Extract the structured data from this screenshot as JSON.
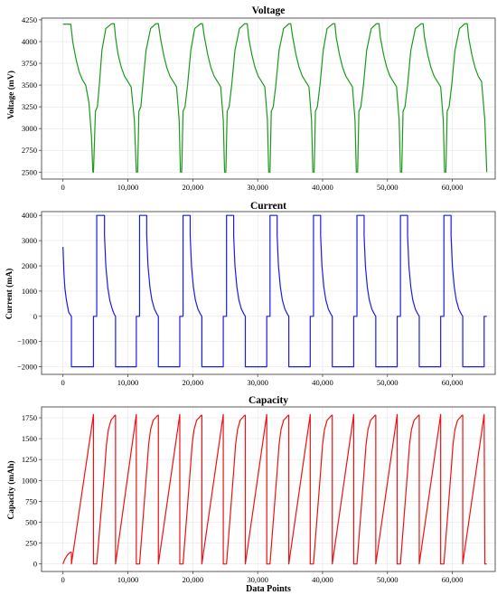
{
  "chart_data": [
    {
      "type": "line",
      "title": "Voltage",
      "xlabel": "",
      "ylabel": "Voltage (mV)",
      "xlim": [
        -3300,
        66600
      ],
      "ylim": [
        2420,
        4270
      ],
      "xticks": [
        0,
        10000,
        20000,
        30000,
        40000,
        50000,
        60000
      ],
      "xtick_labels": [
        "0",
        "10,000",
        "20,000",
        "30,000",
        "40,000",
        "50,000",
        "60,000"
      ],
      "yticks": [
        2500,
        2750,
        3000,
        3250,
        3500,
        3750,
        4000,
        4250
      ],
      "ytick_labels": [
        "2500",
        "2750",
        "3000",
        "3250",
        "3500",
        "3750",
        "4000",
        "4250"
      ],
      "grid": true,
      "color": "#1a9a1a",
      "series": [
        {
          "x": [
            0,
            1200,
            1500,
            2000,
            2500,
            3000,
            3500,
            4000,
            4400,
            4600,
            4700,
            5000,
            5300,
            5600,
            6000,
            6600,
            7500,
            7900,
            8100,
            8500,
            9000,
            9500,
            10000,
            10500,
            11000,
            11300,
            11500,
            11700,
            12000,
            12300,
            12800,
            13500,
            14300,
            14700,
            15000,
            15500,
            16000,
            16500,
            17000,
            17500,
            17900,
            18100,
            18300,
            18500,
            18800,
            19200,
            19700,
            20300,
            21200,
            21500,
            21800,
            22300,
            22800,
            23300,
            23800,
            24300,
            24700,
            24900,
            25100,
            25300,
            25600,
            26000,
            26500,
            27200,
            28000,
            28400,
            28600,
            29100,
            29600,
            30100,
            30600,
            31100,
            31500,
            31700,
            31900,
            32100,
            32400,
            32800,
            33300,
            34000,
            34800,
            35100,
            35400,
            35900,
            36400,
            36900,
            37400,
            37900,
            38300,
            38500,
            38700,
            38900,
            39200,
            39600,
            40100,
            40700,
            41600,
            41900,
            42100,
            42600,
            43100,
            43600,
            44100,
            44600,
            45000,
            45200,
            45400,
            45600,
            45900,
            46300,
            46800,
            47500,
            48300,
            48700,
            48900,
            49400,
            49900,
            50400,
            50900,
            51400,
            51800,
            52000,
            52200,
            52400,
            52700,
            53100,
            53600,
            54300,
            55200,
            55500,
            55700,
            56200,
            56700,
            57200,
            57700,
            58200,
            58600,
            58800,
            59000,
            59200,
            59500,
            59900,
            60400,
            61100,
            61900,
            62300,
            62500,
            63000,
            63500,
            64000,
            64500,
            65000,
            65300
          ],
          "y": [
            4200,
            4200,
            4000,
            3800,
            3650,
            3560,
            3500,
            3300,
            2900,
            2500,
            2500,
            3200,
            3250,
            3500,
            3900,
            4150,
            4205,
            4205,
            4050,
            3850,
            3700,
            3600,
            3540,
            3480,
            3100,
            2500,
            2500,
            3200,
            3250,
            3500,
            3900,
            4150,
            4205,
            4205,
            4050,
            3850,
            3700,
            3600,
            3540,
            3480,
            3100,
            2500,
            2500,
            3200,
            3250,
            3500,
            3900,
            4150,
            4205,
            4205,
            4050,
            3850,
            3700,
            3600,
            3540,
            3480,
            3100,
            2500,
            2500,
            3200,
            3250,
            3500,
            3900,
            4150,
            4205,
            4205,
            4050,
            3850,
            3700,
            3600,
            3540,
            3480,
            3100,
            2500,
            2500,
            3200,
            3250,
            3500,
            3900,
            4150,
            4205,
            4205,
            4050,
            3850,
            3700,
            3600,
            3540,
            3480,
            3100,
            2500,
            2500,
            3200,
            3250,
            3500,
            3900,
            4150,
            4205,
            4205,
            4050,
            3850,
            3700,
            3600,
            3540,
            3480,
            3100,
            2500,
            2500,
            3200,
            3250,
            3500,
            3900,
            4150,
            4205,
            4205,
            4050,
            3850,
            3700,
            3600,
            3540,
            3480,
            3100,
            2500,
            2500,
            3200,
            3250,
            3500,
            3900,
            4150,
            4205,
            4205,
            4050,
            3850,
            3700,
            3600,
            3540,
            3480,
            3100,
            2500,
            2500,
            3200,
            3250,
            3500,
            3900,
            4150,
            4205,
            4205,
            4050,
            3850,
            3700,
            3600,
            3540,
            3100,
            2500
          ]
        }
      ]
    },
    {
      "type": "line",
      "title": "Current",
      "xlabel": "",
      "ylabel": "Current (mA)",
      "xlim": [
        -3300,
        66600
      ],
      "ylim": [
        -2300,
        4150
      ],
      "xticks": [
        0,
        10000,
        20000,
        30000,
        40000,
        50000,
        60000
      ],
      "xtick_labels": [
        "0",
        "10,000",
        "20,000",
        "30,000",
        "40,000",
        "50,000",
        "60,000"
      ],
      "yticks": [
        -2000,
        -1000,
        0,
        1000,
        2000,
        3000,
        4000
      ],
      "ytick_labels": [
        "−2000",
        "−1000",
        "0",
        "1000",
        "2000",
        "3000",
        "4000"
      ],
      "grid": true,
      "color": "#1a1aee",
      "series": [
        {
          "x": [
            0,
            150,
            300,
            500,
            700,
            900,
            1200,
            1300,
            1300,
            4700,
            4700,
            5000,
            5200,
            5200,
            6400,
            6400,
            6600,
            6900,
            7200,
            7600,
            7900,
            8100,
            8100,
            11300,
            11300,
            11600,
            11800,
            11800,
            12900,
            12900,
            13100,
            13400,
            13700,
            14100,
            14500,
            14700,
            14700,
            18000,
            18000,
            18300,
            18500,
            18500,
            19600,
            19600,
            19800,
            20100,
            20400,
            20800,
            21200,
            21400,
            21400,
            24700,
            24700,
            25000,
            25200,
            25200,
            26300,
            26300,
            26500,
            26800,
            27100,
            27500,
            27900,
            28100,
            28100,
            31400,
            31400,
            31700,
            31900,
            31900,
            33000,
            33000,
            33200,
            33500,
            33800,
            34200,
            34600,
            34800,
            34800,
            38100,
            38100,
            38400,
            38600,
            38600,
            39700,
            39700,
            39900,
            40200,
            40500,
            40900,
            41300,
            41500,
            41500,
            44800,
            44800,
            45100,
            45300,
            45300,
            46400,
            46400,
            46600,
            46900,
            47200,
            47600,
            48000,
            48200,
            48200,
            51500,
            51500,
            51800,
            52000,
            52000,
            53100,
            53100,
            53300,
            53600,
            53900,
            54300,
            54700,
            54900,
            54900,
            58200,
            58200,
            58500,
            58700,
            58700,
            59800,
            59800,
            60000,
            60300,
            60600,
            61000,
            61400,
            61600,
            61600,
            64900,
            64900,
            65300
          ],
          "y": [
            2750,
            1700,
            1100,
            700,
            400,
            150,
            40,
            0,
            -2000,
            -2000,
            0,
            0,
            0,
            4000,
            4000,
            3200,
            2000,
            1150,
            650,
            280,
            80,
            0,
            -2000,
            -2000,
            0,
            0,
            0,
            4000,
            4000,
            3200,
            2000,
            1150,
            650,
            280,
            80,
            0,
            -2000,
            -2000,
            0,
            0,
            0,
            4000,
            4000,
            3200,
            2000,
            1150,
            650,
            280,
            80,
            0,
            -2000,
            -2000,
            0,
            0,
            0,
            4000,
            4000,
            3200,
            2000,
            1150,
            650,
            280,
            80,
            0,
            -2000,
            -2000,
            0,
            0,
            0,
            4000,
            4000,
            3200,
            2000,
            1150,
            650,
            280,
            80,
            0,
            -2000,
            -2000,
            0,
            0,
            0,
            4000,
            4000,
            3200,
            2000,
            1150,
            650,
            280,
            80,
            0,
            -2000,
            -2000,
            0,
            0,
            0,
            4000,
            4000,
            3200,
            2000,
            1150,
            650,
            280,
            80,
            0,
            -2000,
            -2000,
            0,
            0,
            0,
            4000,
            4000,
            3200,
            2000,
            1150,
            650,
            280,
            80,
            0,
            -2000,
            -2000,
            0,
            0,
            0,
            4000,
            4000,
            3200,
            2000,
            1150,
            650,
            280,
            80,
            0,
            -2000,
            -2000,
            0,
            0
          ]
        }
      ]
    },
    {
      "type": "line",
      "title": "Capacity",
      "xlabel": "Data Points",
      "ylabel": "Capacity (mAh)",
      "xlim": [
        -3300,
        66600
      ],
      "ylim": [
        -90,
        1880
      ],
      "xticks": [
        0,
        10000,
        20000,
        30000,
        40000,
        50000,
        60000
      ],
      "xtick_labels": [
        "0",
        "10,000",
        "20,000",
        "30,000",
        "40,000",
        "50,000",
        "60,000"
      ],
      "yticks": [
        0,
        250,
        500,
        750,
        1000,
        1250,
        1500,
        1750
      ],
      "ytick_labels": [
        "0",
        "250",
        "500",
        "750",
        "1000",
        "1250",
        "1500",
        "1750"
      ],
      "grid": true,
      "color": "#ee1111",
      "series": [
        {
          "x": [
            0,
            300,
            700,
            1100,
            1300,
            1300,
            4700,
            4700,
            5200,
            6400,
            6700,
            7000,
            7400,
            8000,
            8100,
            8100,
            11300,
            11300,
            11800,
            12900,
            13200,
            13500,
            13900,
            14600,
            14700,
            14700,
            18000,
            18000,
            18500,
            19600,
            19900,
            20200,
            20600,
            21300,
            21400,
            21400,
            24700,
            24700,
            25200,
            26300,
            26600,
            26900,
            27300,
            28000,
            28100,
            28100,
            31400,
            31400,
            31900,
            33000,
            33300,
            33600,
            34000,
            34700,
            34800,
            34800,
            38100,
            38100,
            38600,
            39700,
            40000,
            40300,
            40700,
            41400,
            41500,
            41500,
            44800,
            44800,
            45300,
            46400,
            46700,
            47000,
            47400,
            48100,
            48200,
            48200,
            51500,
            51500,
            52000,
            53100,
            53400,
            53700,
            54100,
            54800,
            54900,
            54900,
            58200,
            58200,
            58700,
            59800,
            60100,
            60400,
            60800,
            61500,
            61600,
            61600,
            64900,
            65000,
            65300
          ],
          "y": [
            0,
            60,
            110,
            140,
            140,
            0,
            1790,
            0,
            0,
            1110,
            1430,
            1610,
            1720,
            1780,
            1780,
            0,
            1790,
            0,
            0,
            1110,
            1430,
            1610,
            1720,
            1780,
            1780,
            0,
            1790,
            0,
            0,
            1110,
            1430,
            1610,
            1720,
            1780,
            1780,
            0,
            1790,
            0,
            0,
            1110,
            1430,
            1610,
            1720,
            1780,
            1780,
            0,
            1790,
            0,
            0,
            1110,
            1430,
            1610,
            1720,
            1780,
            1780,
            0,
            1790,
            0,
            0,
            1110,
            1430,
            1610,
            1720,
            1780,
            1780,
            0,
            1790,
            0,
            0,
            1110,
            1430,
            1610,
            1720,
            1780,
            1780,
            0,
            1790,
            0,
            0,
            1110,
            1430,
            1610,
            1720,
            1780,
            1780,
            0,
            1790,
            0,
            0,
            1110,
            1430,
            1610,
            1720,
            1780,
            1780,
            0,
            1790,
            0,
            0
          ]
        }
      ]
    }
  ]
}
